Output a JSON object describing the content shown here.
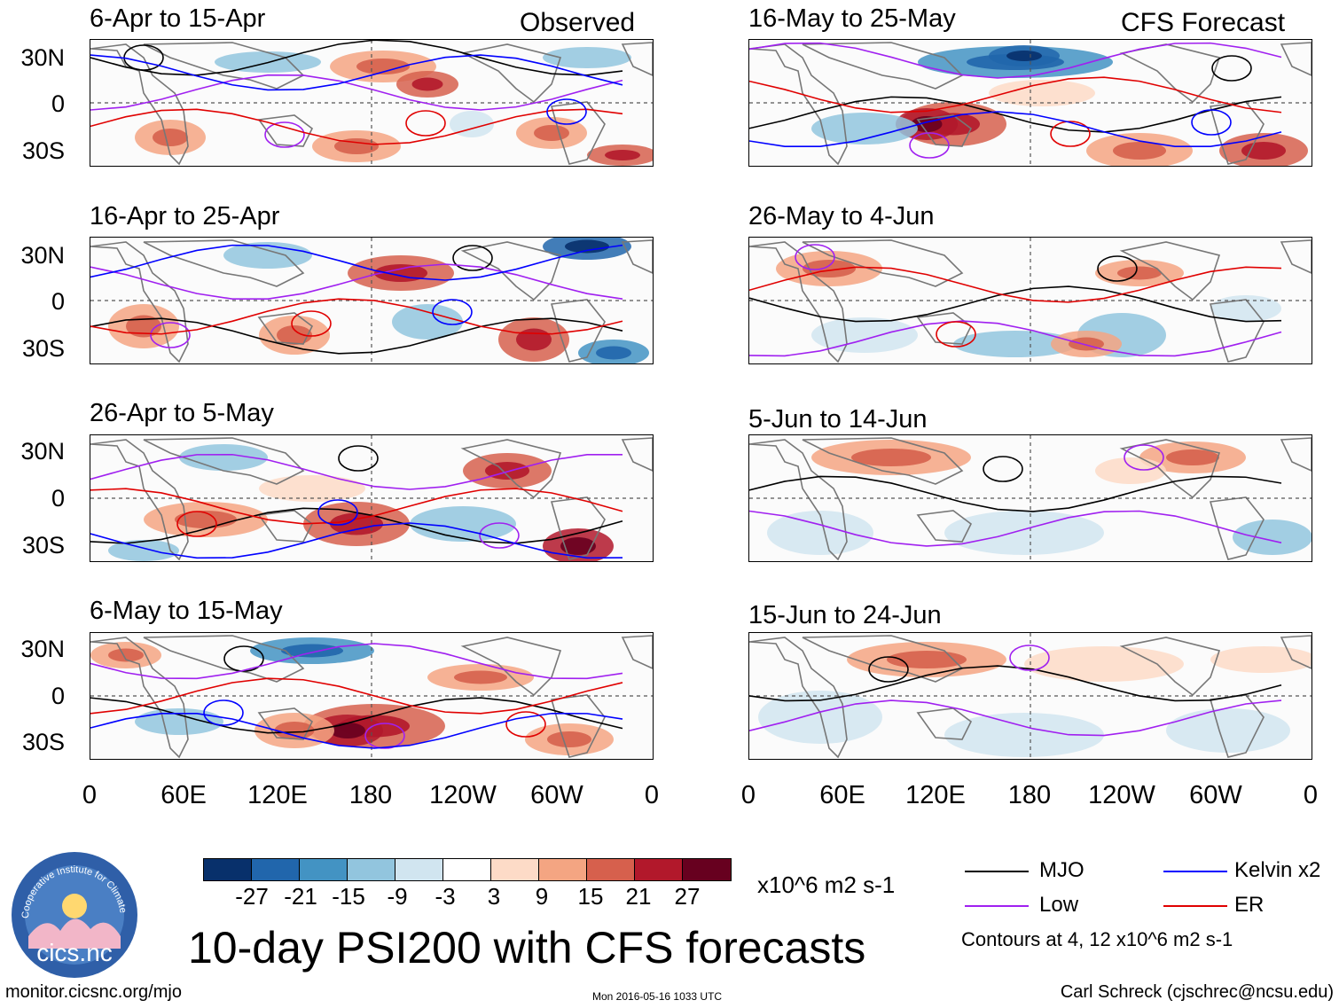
{
  "observed_label": "Observed",
  "forecast_label": "CFS Forecast",
  "panels_left": [
    {
      "period": "6-Apr to 15-Apr"
    },
    {
      "period": "16-Apr to 25-Apr"
    },
    {
      "period": "26-Apr to 5-May"
    },
    {
      "period": "6-May to 15-May"
    }
  ],
  "panels_right": [
    {
      "period": "16-May to 25-May"
    },
    {
      "period": "26-May to 4-Jun"
    },
    {
      "period": "5-Jun to 14-Jun"
    },
    {
      "period": "15-Jun to 24-Jun"
    }
  ],
  "lat_labels": [
    "30N",
    "0",
    "30S"
  ],
  "lon_labels": [
    "0",
    "60E",
    "120E",
    "180",
    "120W",
    "60W",
    "0"
  ],
  "colorbar": {
    "colors": [
      "#08306b",
      "#2166ac",
      "#4393c3",
      "#92c5de",
      "#d1e5f0",
      "#ffffff",
      "#fddbc7",
      "#f4a582",
      "#d6604d",
      "#b2182b",
      "#67001f"
    ],
    "ticks": [
      "-27",
      "-21",
      "-15",
      "-9",
      "-3",
      "3",
      "9",
      "15",
      "21",
      "27"
    ],
    "units": "x10^6 m2 s-1"
  },
  "legend": {
    "mjo": {
      "label": "MJO",
      "color": "#000000"
    },
    "kelvin": {
      "label": "Kelvin x2",
      "color": "#0000ff"
    },
    "low": {
      "label": "Low",
      "color": "#a020f0"
    },
    "er": {
      "label": "ER",
      "color": "#e00000"
    },
    "contours": "Contours at 4, 12 x10^6 m2 s-1"
  },
  "title": "10-day PSI200 with CFS forecasts",
  "logo_text": "cics.nc",
  "logo_ring_text": "Cooperative Institute for Climate and Satellites",
  "footer": {
    "left": "monitor.cicsnc.org/mjo",
    "center": "Mon 2016-05-16 1033 UTC",
    "right": "Carl Schreck (cjschrec@ncsu.edu)"
  }
}
